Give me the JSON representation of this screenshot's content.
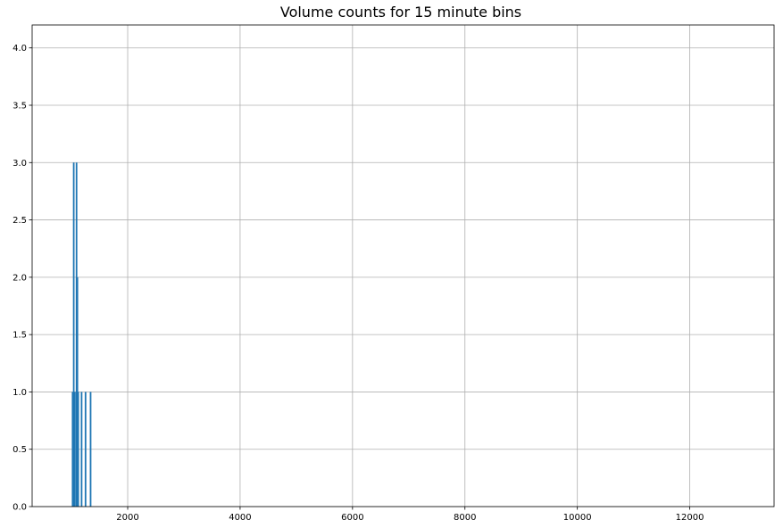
{
  "chart_data": {
    "type": "bar",
    "title": "Volume counts for 15 minute bins",
    "xlabel": "",
    "ylabel": "",
    "xlim": [
      300,
      13500
    ],
    "ylim": [
      0,
      4.2
    ],
    "x_ticks": [
      2000,
      4000,
      6000,
      8000,
      10000,
      12000
    ],
    "x_tick_labels": [
      "2000",
      "4000",
      "6000",
      "8000",
      "10000",
      "12000"
    ],
    "y_ticks": [
      0,
      0.5,
      1,
      1.5,
      2,
      2.5,
      3,
      3.5,
      4
    ],
    "y_tick_labels": [
      "0.0",
      "0.5",
      "1.0",
      "1.5",
      "2.0",
      "2.5",
      "3.0",
      "3.5",
      "4.0"
    ],
    "grid": true,
    "bar_color": "#1f77b4",
    "bars": [
      {
        "x": 1020,
        "value": 1
      },
      {
        "x": 1040,
        "value": 3
      },
      {
        "x": 1060,
        "value": 1
      },
      {
        "x": 1090,
        "value": 3
      },
      {
        "x": 1105,
        "value": 2
      },
      {
        "x": 1120,
        "value": 1
      },
      {
        "x": 1180,
        "value": 1
      },
      {
        "x": 1250,
        "value": 1
      },
      {
        "x": 1340,
        "value": 1
      }
    ]
  }
}
